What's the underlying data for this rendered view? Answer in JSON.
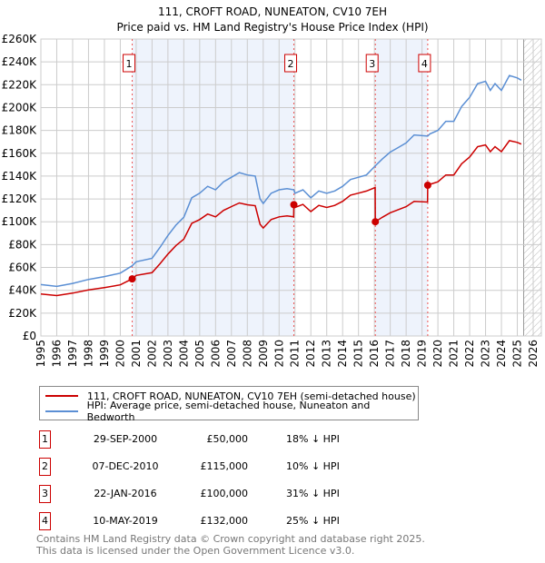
{
  "chart_data": {
    "type": "line",
    "title": "111, CROFT ROAD, NUNEATON, CV10 7EH",
    "subtitle": "Price paid vs. HM Land Registry's House Price Index (HPI)",
    "xlim": [
      1995,
      2026.5
    ],
    "ylim": [
      0,
      260000
    ],
    "x_ticks": [
      "1995",
      "1996",
      "1997",
      "1998",
      "1999",
      "2000",
      "2001",
      "2002",
      "2003",
      "2004",
      "2005",
      "2006",
      "2007",
      "2008",
      "2009",
      "2010",
      "2011",
      "2012",
      "2013",
      "2014",
      "2015",
      "2016",
      "2017",
      "2018",
      "2019",
      "2020",
      "2021",
      "2022",
      "2023",
      "2024",
      "2025",
      "2026"
    ],
    "y_ticks": [
      {
        "v": 0,
        "label": "£0"
      },
      {
        "v": 20000,
        "label": "£20K"
      },
      {
        "v": 40000,
        "label": "£40K"
      },
      {
        "v": 60000,
        "label": "£60K"
      },
      {
        "v": 80000,
        "label": "£80K"
      },
      {
        "v": 100000,
        "label": "£100K"
      },
      {
        "v": 120000,
        "label": "£120K"
      },
      {
        "v": 140000,
        "label": "£140K"
      },
      {
        "v": 160000,
        "label": "£160K"
      },
      {
        "v": 180000,
        "label": "£180K"
      },
      {
        "v": 200000,
        "label": "£200K"
      },
      {
        "v": 220000,
        "label": "£220K"
      },
      {
        "v": 240000,
        "label": "£240K"
      },
      {
        "v": 260000,
        "label": "£260K"
      }
    ],
    "grid": true,
    "hatch_from": 2025.4,
    "series": [
      {
        "name": "111, CROFT ROAD, NUNEATON, CV10 7EH (semi-detached house)",
        "color": "#cc0000",
        "x": [
          1995,
          1996,
          1997,
          1998,
          1999,
          2000,
          2000.75,
          2001,
          2002,
          2002.5,
          2003,
          2003.5,
          2004,
          2004.5,
          2005,
          2005.5,
          2006,
          2006.5,
          2007,
          2007.5,
          2008,
          2008.5,
          2008.8,
          2009,
          2009.5,
          2010,
          2010.5,
          2010.92,
          2010.93,
          2011,
          2011.5,
          2012,
          2012.5,
          2013,
          2013.5,
          2014,
          2014.5,
          2015,
          2015.5,
          2016.05,
          2016.06,
          2016.5,
          2017,
          2017.5,
          2018,
          2018.5,
          2019.35,
          2019.36,
          2019.5,
          2020,
          2020.5,
          2021,
          2021.5,
          2022,
          2022.5,
          2023,
          2023.3,
          2023.6,
          2024,
          2024.5,
          2025,
          2025.25
        ],
        "y": [
          36700,
          35400,
          37500,
          40300,
          42400,
          44800,
          50000,
          53000,
          55400,
          63200,
          71700,
          79000,
          84800,
          98600,
          101900,
          106800,
          104300,
          110000,
          113300,
          116500,
          114900,
          114100,
          97800,
          94500,
          101900,
          104300,
          105100,
          104300,
          115000,
          112500,
          115200,
          108900,
          114300,
          112500,
          114300,
          117900,
          123300,
          125100,
          126900,
          130000,
          100000,
          103900,
          107900,
          110600,
          113200,
          117900,
          117300,
          132000,
          132800,
          135000,
          141000,
          141000,
          150800,
          156800,
          165800,
          167300,
          161300,
          165800,
          161300,
          171000,
          169500,
          168000
        ]
      },
      {
        "name": "HPI: Average price, semi-detached house, Nuneaton and Bedworth",
        "color": "#5b8fd4",
        "x": [
          1995,
          1996,
          1997,
          1998,
          1999,
          2000,
          2000.75,
          2001,
          2002,
          2002.5,
          2003,
          2003.5,
          2004,
          2004.5,
          2005,
          2005.5,
          2006,
          2006.5,
          2007,
          2007.5,
          2008,
          2008.5,
          2008.8,
          2009,
          2009.5,
          2010,
          2010.5,
          2010.93,
          2011,
          2011.5,
          2012,
          2012.5,
          2013,
          2013.5,
          2014,
          2014.5,
          2015,
          2015.5,
          2016.06,
          2016.5,
          2017,
          2017.5,
          2018,
          2018.5,
          2019.36,
          2019.5,
          2020,
          2020.5,
          2021,
          2021.5,
          2022,
          2022.5,
          2023,
          2023.3,
          2023.6,
          2024,
          2024.5,
          2025,
          2025.25
        ],
        "y": [
          45000,
          43400,
          46000,
          49500,
          52000,
          55000,
          61500,
          65000,
          68000,
          77500,
          88000,
          97000,
          104000,
          121000,
          125000,
          131000,
          128000,
          135000,
          139000,
          143000,
          141000,
          140000,
          120000,
          116000,
          125000,
          128000,
          129000,
          128000,
          125000,
          128000,
          121000,
          127000,
          125000,
          127000,
          131000,
          137000,
          139000,
          141000,
          149000,
          155000,
          161000,
          165000,
          169000,
          176000,
          175000,
          177000,
          180000,
          188000,
          188000,
          201000,
          209000,
          221000,
          223000,
          215000,
          221000,
          215000,
          228000,
          226000,
          224000
        ]
      }
    ],
    "sales": [
      {
        "n": "1",
        "x": 2000.75,
        "price": 50000,
        "date": "29-SEP-2000",
        "price_label": "£50,000",
        "hpi": "18% ↓ HPI"
      },
      {
        "n": "2",
        "x": 2010.93,
        "price": 115000,
        "date": "07-DEC-2010",
        "price_label": "£115,000",
        "hpi": "10% ↓ HPI"
      },
      {
        "n": "3",
        "x": 2016.06,
        "price": 100000,
        "date": "22-JAN-2016",
        "price_label": "£100,000",
        "hpi": "31% ↓ HPI"
      },
      {
        "n": "4",
        "x": 2019.36,
        "price": 132000,
        "date": "10-MAY-2019",
        "price_label": "£132,000",
        "hpi": "25% ↓ HPI"
      }
    ]
  },
  "footer": {
    "line1": "Contains HM Land Registry data © Crown copyright and database right 2025.",
    "line2": "This data is licensed under the Open Government Licence v3.0."
  }
}
